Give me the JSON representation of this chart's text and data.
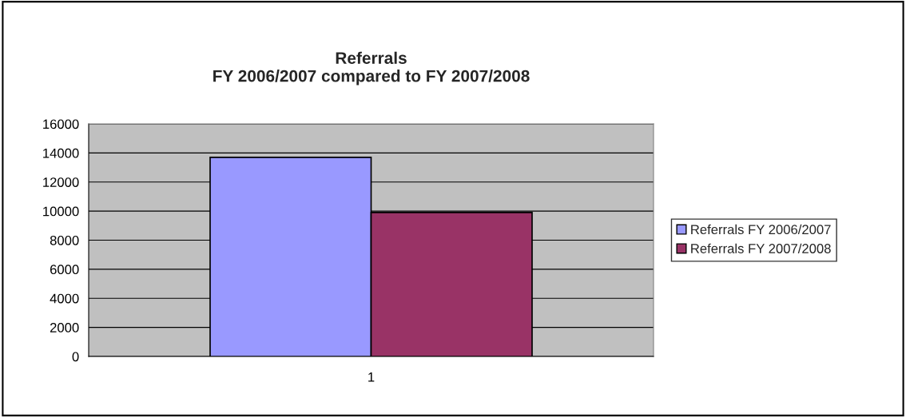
{
  "chart_data": {
    "type": "bar",
    "title": "Referrals\nFY 2006/2007 compared to FY 2007/2008",
    "categories": [
      "1"
    ],
    "series": [
      {
        "name": "Referrals FY 2006/2007",
        "color": "#9999ff",
        "values": [
          13700
        ]
      },
      {
        "name": "Referrals FY 2007/2008",
        "color": "#993366",
        "values": [
          9900
        ]
      }
    ],
    "ylim": [
      0,
      16000
    ],
    "yticks": [
      0,
      2000,
      4000,
      6000,
      8000,
      10000,
      12000,
      14000,
      16000
    ],
    "grid": "y",
    "legend": "right"
  }
}
